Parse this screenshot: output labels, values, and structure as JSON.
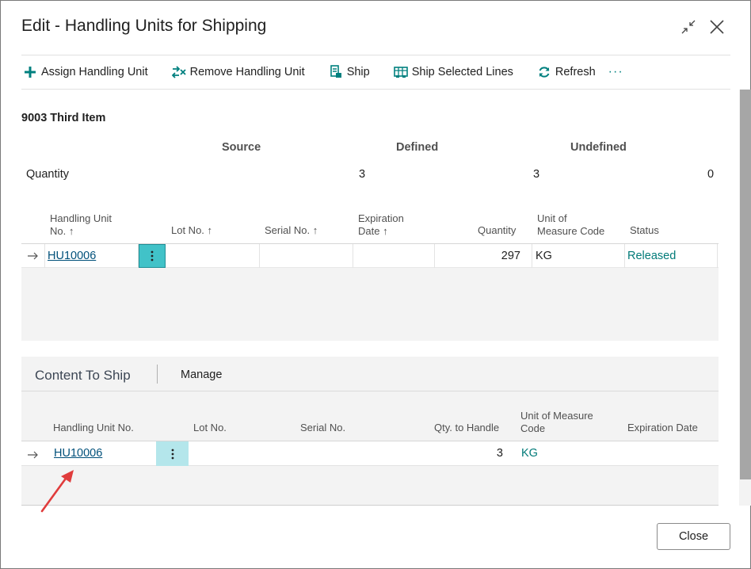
{
  "dialog": {
    "title": "Edit - Handling Units for Shipping"
  },
  "toolbar": {
    "assign": "Assign Handling Unit",
    "remove": "Remove Handling Unit",
    "ship": "Ship",
    "ship_selected": "Ship Selected Lines",
    "refresh": "Refresh",
    "more": "···"
  },
  "item": {
    "title": "9003 Third Item"
  },
  "summary": {
    "col_source": "Source",
    "col_defined": "Defined",
    "col_undefined": "Undefined",
    "row_label": "Quantity",
    "source": "3",
    "defined": "3",
    "undefined": "0"
  },
  "grid1": {
    "headers": {
      "hu_line1": "Handling Unit",
      "hu_line2": "No. ↑",
      "lot": "Lot No. ↑",
      "serial": "Serial No. ↑",
      "exp_line1": "Expiration",
      "exp_line2": "Date ↑",
      "quantity": "Quantity",
      "uom_line1": "Unit of",
      "uom_line2": "Measure Code",
      "status": "Status"
    },
    "row": {
      "hu": "HU10006",
      "lot": "",
      "serial": "",
      "expiration": "",
      "quantity": "297",
      "uom": "KG",
      "status": "Released"
    }
  },
  "content": {
    "tab_title": "Content To Ship",
    "manage": "Manage",
    "headers": {
      "hu": "Handling Unit No.",
      "lot": "Lot No.",
      "serial": "Serial No.",
      "qty": "Qty. to Handle",
      "uom_line1": "Unit of Measure",
      "uom_line2": "Code",
      "exp": "Expiration Date"
    },
    "row": {
      "hu": "HU10006",
      "qty": "3",
      "uom": "KG"
    }
  },
  "footer": {
    "close": "Close"
  },
  "colors": {
    "accent": "#00807f",
    "link": "#00507a",
    "arrow": "#e03c3c"
  }
}
